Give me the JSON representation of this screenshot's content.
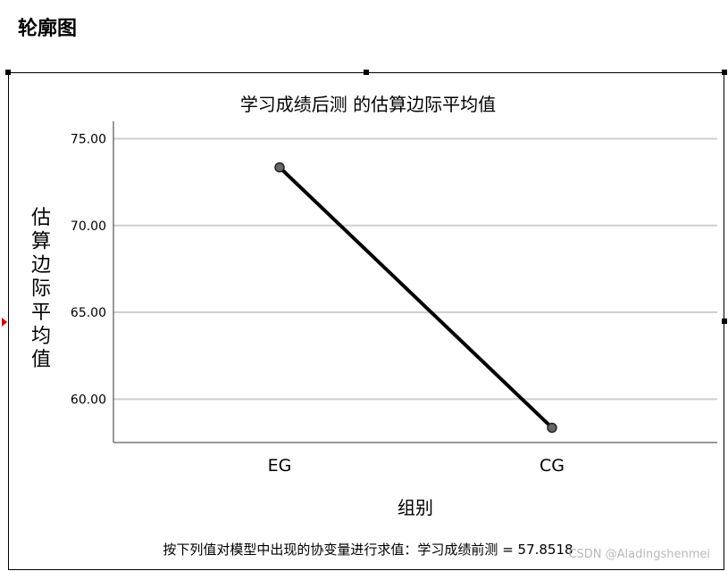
{
  "page": {
    "heading": "轮廓图"
  },
  "watermark": "CSDN @Aladingshenmei",
  "chart_data": {
    "type": "line",
    "title": "学习成绩后测 的估算边际平均值",
    "xlabel": "组别",
    "ylabel": "估算边际平均值",
    "categories": [
      "EG",
      "CG"
    ],
    "series": [
      {
        "values": [
          73.35,
          58.35
        ],
        "color": "#000000"
      }
    ],
    "ylim": [
      57.5,
      76
    ],
    "yticks": [
      60,
      65,
      70,
      75
    ],
    "ytick_labels": [
      "60.00",
      "65.00",
      "70.00",
      "75.00"
    ],
    "grid": true,
    "footnote": "按下列值对模型中出现的协变量进行求值：学习成绩前测 = 57.8518"
  }
}
